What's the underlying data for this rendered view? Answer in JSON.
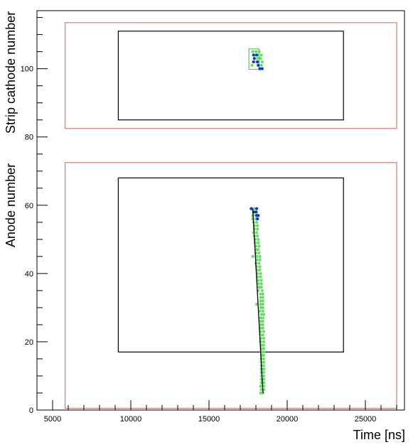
{
  "chart_data": {
    "type": "scatter",
    "xlabel": "Time [ns]",
    "ylabel_top": "Strip cathode number",
    "ylabel_bottom": "Anode number",
    "xlim": [
      4000,
      27500
    ],
    "ylim": [
      0,
      117
    ],
    "x_ticks": [
      5000,
      10000,
      15000,
      20000,
      25000
    ],
    "y_ticks": [
      0,
      20,
      40,
      60,
      80,
      100
    ],
    "grid": false,
    "regions": [
      {
        "kind": "outer",
        "color": "#d87a7a",
        "x": [
          5800,
          27000
        ],
        "y": [
          82.5,
          113.5
        ]
      },
      {
        "kind": "inner",
        "color": "#000000",
        "x": [
          9200,
          23600
        ],
        "y": [
          85,
          111
        ]
      },
      {
        "kind": "outer",
        "color": "#d87a7a",
        "x": [
          5800,
          27000
        ],
        "y": [
          0.5,
          72.5
        ]
      },
      {
        "kind": "inner",
        "color": "#000000",
        "x": [
          9200,
          23600
        ],
        "y": [
          17,
          68
        ]
      },
      {
        "kind": "cluster-box",
        "color": "#44bb44",
        "x": [
          17550,
          18200
        ],
        "y": [
          99.8,
          105.8
        ]
      }
    ],
    "fit_line": {
      "x": [
        17800,
        18450
      ],
      "y": [
        59,
        5
      ]
    },
    "series": [
      {
        "color": "#66dd66",
        "points": [
          [
            17800,
            105
          ],
          [
            18000,
            105
          ],
          [
            18200,
            105
          ],
          [
            17950,
            104
          ],
          [
            18150,
            104
          ],
          [
            18350,
            104
          ],
          [
            18100,
            103
          ],
          [
            18300,
            103
          ],
          [
            17850,
            102
          ],
          [
            18050,
            102
          ],
          [
            18400,
            102
          ],
          [
            17750,
            101
          ],
          [
            18150,
            101
          ],
          [
            18350,
            101
          ],
          [
            17750,
            59
          ],
          [
            17900,
            59
          ],
          [
            17850,
            58
          ],
          [
            18050,
            58
          ],
          [
            17800,
            57
          ],
          [
            18000,
            57
          ],
          [
            17800,
            56
          ],
          [
            18000,
            56
          ],
          [
            17850,
            55
          ],
          [
            18050,
            55
          ],
          [
            17900,
            54
          ],
          [
            18100,
            54
          ],
          [
            17900,
            53
          ],
          [
            18100,
            53
          ],
          [
            17850,
            52
          ],
          [
            18050,
            52
          ],
          [
            17900,
            51
          ],
          [
            18100,
            51
          ],
          [
            17950,
            50
          ],
          [
            18150,
            50
          ],
          [
            17950,
            49
          ],
          [
            18150,
            49
          ],
          [
            18000,
            48
          ],
          [
            18200,
            48
          ],
          [
            18050,
            47
          ],
          [
            18150,
            47
          ],
          [
            18000,
            46
          ],
          [
            18200,
            46
          ],
          [
            17800,
            45
          ],
          [
            18050,
            45
          ],
          [
            18250,
            45
          ],
          [
            18050,
            44
          ],
          [
            18250,
            44
          ],
          [
            18000,
            43
          ],
          [
            18200,
            43
          ],
          [
            18050,
            42
          ],
          [
            18250,
            42
          ],
          [
            18100,
            41
          ],
          [
            18250,
            41
          ],
          [
            18100,
            40
          ],
          [
            18300,
            40
          ],
          [
            18100,
            39
          ],
          [
            18300,
            39
          ],
          [
            18150,
            38
          ],
          [
            18350,
            38
          ],
          [
            18150,
            37
          ],
          [
            18350,
            37
          ],
          [
            18200,
            36
          ],
          [
            18350,
            36
          ],
          [
            18150,
            35
          ],
          [
            18400,
            35
          ],
          [
            18300,
            34
          ],
          [
            18450,
            34
          ],
          [
            18300,
            33
          ],
          [
            18450,
            33
          ],
          [
            18300,
            32
          ],
          [
            18450,
            32
          ],
          [
            18050,
            31
          ],
          [
            18300,
            31
          ],
          [
            18450,
            31
          ],
          [
            18300,
            30
          ],
          [
            18450,
            30
          ],
          [
            18250,
            29
          ],
          [
            18450,
            29
          ],
          [
            18350,
            28
          ],
          [
            18500,
            28
          ],
          [
            18300,
            27
          ],
          [
            18450,
            27
          ],
          [
            18300,
            26
          ],
          [
            18450,
            26
          ],
          [
            18300,
            25
          ],
          [
            18450,
            25
          ],
          [
            18300,
            24
          ],
          [
            18450,
            24
          ],
          [
            18300,
            23
          ],
          [
            18500,
            23
          ],
          [
            18300,
            22
          ],
          [
            18450,
            22
          ],
          [
            18300,
            21
          ],
          [
            18500,
            21
          ],
          [
            18300,
            20
          ],
          [
            18500,
            20
          ],
          [
            18350,
            19
          ],
          [
            18500,
            19
          ],
          [
            18350,
            18
          ],
          [
            18500,
            18
          ],
          [
            18350,
            17
          ],
          [
            18500,
            17
          ],
          [
            18350,
            16
          ],
          [
            18500,
            16
          ],
          [
            18350,
            15
          ],
          [
            18500,
            15
          ],
          [
            18350,
            14
          ],
          [
            18500,
            14
          ],
          [
            18350,
            13
          ],
          [
            18500,
            13
          ],
          [
            18350,
            12
          ],
          [
            18500,
            12
          ],
          [
            18350,
            11
          ],
          [
            18500,
            11
          ],
          [
            18350,
            10
          ],
          [
            18500,
            10
          ],
          [
            18350,
            9
          ],
          [
            18500,
            9
          ],
          [
            18350,
            8
          ],
          [
            18500,
            8
          ],
          [
            18300,
            7
          ],
          [
            18500,
            7
          ],
          [
            18350,
            6
          ],
          [
            18500,
            6
          ],
          [
            18300,
            5
          ],
          [
            18450,
            5
          ]
        ]
      },
      {
        "color": "#1133cc",
        "points": [
          [
            17850,
            104
          ],
          [
            18050,
            104
          ],
          [
            17900,
            103
          ],
          [
            17850,
            102
          ],
          [
            18100,
            102
          ],
          [
            18150,
            101
          ],
          [
            18250,
            100
          ],
          [
            18400,
            100
          ],
          [
            17700,
            59
          ],
          [
            18050,
            59
          ],
          [
            17850,
            58
          ],
          [
            18000,
            58
          ],
          [
            18050,
            57
          ],
          [
            18150,
            57
          ],
          [
            18100,
            56
          ]
        ]
      }
    ]
  }
}
